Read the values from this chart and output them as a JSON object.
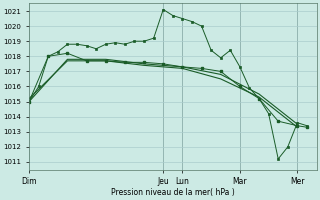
{
  "background_color": "#cceae4",
  "grid_color": "#aacccc",
  "line_color": "#1a5c28",
  "ylabel_text": "Pression niveau de la mer( hPa )",
  "ylim": [
    1010.5,
    1021.5
  ],
  "yticks": [
    1011,
    1012,
    1013,
    1014,
    1015,
    1016,
    1017,
    1018,
    1019,
    1020,
    1021
  ],
  "x_day_labels": [
    "Dim",
    "Jeu",
    "Lun",
    "Mar",
    "Mer"
  ],
  "x_day_positions": [
    0,
    14,
    16,
    22,
    28
  ],
  "xlim": [
    0,
    30
  ],
  "vlines": [
    14,
    16,
    22,
    28
  ],
  "series1": {
    "x": [
      0,
      1,
      2,
      3,
      4,
      5,
      6,
      7,
      8,
      9,
      10,
      11,
      12,
      13,
      14,
      15,
      16,
      17,
      18,
      19,
      20,
      21,
      22,
      23,
      24,
      25,
      26,
      27,
      28,
      29
    ],
    "y": [
      1015.0,
      1016.0,
      1018.0,
      1018.3,
      1018.8,
      1018.8,
      1018.7,
      1018.5,
      1018.8,
      1018.9,
      1018.8,
      1019.0,
      1019.0,
      1019.2,
      1021.1,
      1020.7,
      1020.5,
      1020.3,
      1020.0,
      1018.4,
      1017.9,
      1018.4,
      1017.3,
      1015.9,
      1015.2,
      1014.2,
      1011.2,
      1012.0,
      1013.6,
      1013.4
    ]
  },
  "series2": {
    "x": [
      0,
      2,
      4,
      6,
      8,
      10,
      12,
      14,
      16,
      18,
      20,
      22,
      24,
      26,
      28,
      29
    ],
    "y": [
      1015.0,
      1018.0,
      1018.2,
      1017.7,
      1017.7,
      1017.6,
      1017.6,
      1017.5,
      1017.3,
      1017.2,
      1017.0,
      1016.0,
      1015.2,
      1013.7,
      1013.4,
      1013.3
    ]
  },
  "series3": {
    "x": [
      0,
      4,
      8,
      12,
      16,
      20,
      24,
      28
    ],
    "y": [
      1015.0,
      1017.8,
      1017.8,
      1017.5,
      1017.3,
      1016.8,
      1015.5,
      1013.5
    ]
  },
  "series4": {
    "x": [
      0,
      4,
      8,
      12,
      16,
      20,
      24,
      28
    ],
    "y": [
      1015.2,
      1017.7,
      1017.7,
      1017.4,
      1017.2,
      1016.5,
      1015.3,
      1013.3
    ]
  }
}
